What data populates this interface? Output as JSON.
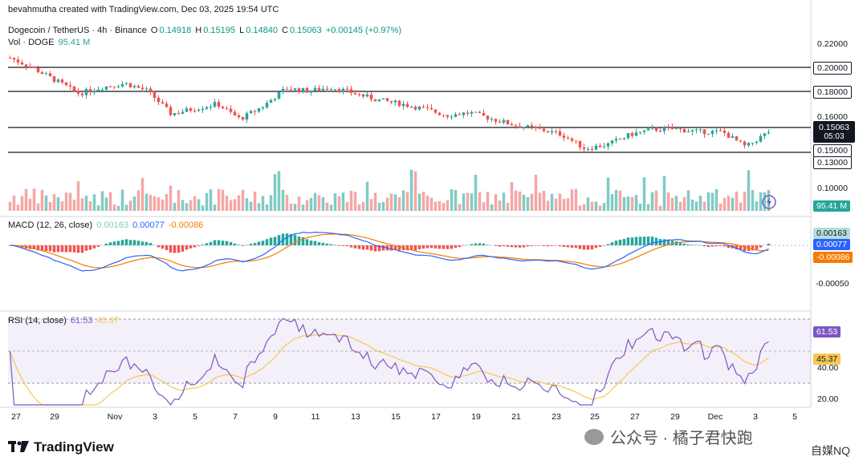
{
  "header": {
    "creator": "bevahmutha created with TradingView.com, Dec 03, 2025 19:54 UTC",
    "symbol": "Dogecoin / TetherUS · 4h · Binance",
    "o_label": "O",
    "o_val": "0.14918",
    "h_label": "H",
    "h_val": "0.15195",
    "l_label": "L",
    "l_val": "0.14840",
    "c_label": "C",
    "c_val": "0.15063",
    "change": "+0.00145 (+0.97%)",
    "vol_label": "Vol · DOGE",
    "vol_val": "95.41 M"
  },
  "price_axis": {
    "ticks": [
      "0.22000",
      "0.16000",
      "0.10000"
    ],
    "levels": [
      "0.20000",
      "0.18000",
      "0.15000",
      "0.13000"
    ],
    "last_price": "0.15063",
    "countdown": "05:03",
    "vol_tag": "95.41 M"
  },
  "macd": {
    "label": "MACD (12, 26, close)",
    "hist": "0.00163",
    "macd": "0.00077",
    "signal": "-0.00086",
    "tick": "-0.00050"
  },
  "rsi": {
    "label": "RSI (14, close)",
    "rsi": "61.53",
    "ma": "45.37",
    "ticks": [
      "40.00",
      "20.00"
    ]
  },
  "x_axis": [
    "27",
    "29",
    "Nov",
    "3",
    "5",
    "7",
    "9",
    "11",
    "13",
    "15",
    "17",
    "19",
    "21",
    "23",
    "25",
    "27",
    "29",
    "Dec",
    "3",
    "5"
  ],
  "footer": {
    "brand": "TradingView",
    "watermark": "公众号 · 橘子君快跑",
    "watermark2": "自媒NQ"
  },
  "colors": {
    "up": "#26a69a",
    "down": "#ef5350",
    "macd": "#2962ff",
    "signal": "#f57c00",
    "rsi": "#7e57c2",
    "rsi_ma": "#f9c74f"
  },
  "chart_data": {
    "type": "candlestick",
    "title": "Dogecoin / TetherUS · 4h · Binance",
    "ylim": [
      0.09,
      0.225
    ],
    "horizontal_levels": [
      0.2,
      0.18,
      0.15063,
      0.13
    ],
    "price_path_x": [
      27,
      28,
      29,
      30,
      31,
      32,
      33,
      34,
      35,
      36,
      37,
      38,
      39,
      40,
      41,
      42,
      43,
      44,
      45,
      46,
      47,
      48,
      49,
      50,
      51,
      52,
      53,
      54,
      55,
      56,
      57,
      58,
      59,
      60
    ],
    "price_path": [
      0.208,
      0.2,
      0.19,
      0.18,
      0.185,
      0.188,
      0.182,
      0.164,
      0.168,
      0.172,
      0.16,
      0.17,
      0.184,
      0.182,
      0.185,
      0.18,
      0.175,
      0.172,
      0.168,
      0.163,
      0.165,
      0.16,
      0.155,
      0.152,
      0.148,
      0.137,
      0.14,
      0.148,
      0.152,
      0.152,
      0.15,
      0.15,
      0.138,
      0.15
    ],
    "macd_last": {
      "histogram": 0.00163,
      "macd": 0.00077,
      "signal": -0.00086
    },
    "rsi_last": {
      "rsi": 61.53,
      "ma": 45.37
    }
  }
}
